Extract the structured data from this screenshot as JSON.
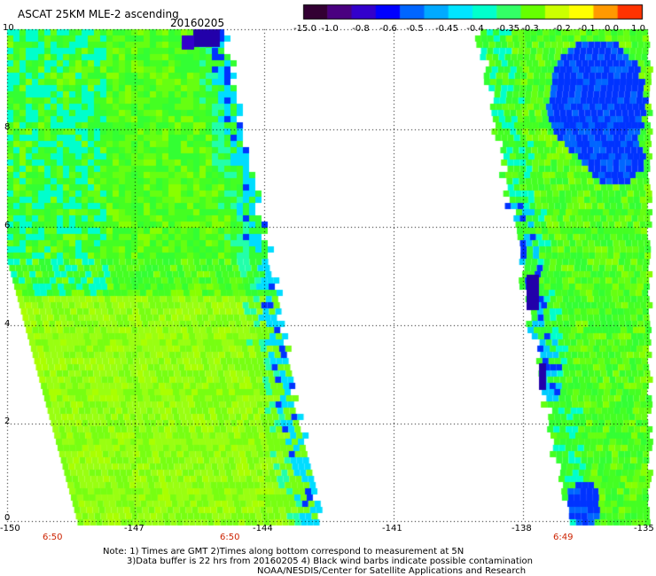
{
  "header": {
    "title": "ASCAT 25KM MLE-2 ascending",
    "date": "20160205"
  },
  "colorbar": {
    "labels": [
      "-15.0",
      "-1.0",
      "-0.8",
      "-0.6",
      "-0.5",
      "-0.45",
      "-0.4",
      "-0.35",
      "-0.3",
      "-0.2",
      "-0.1",
      "0.0",
      "1.0"
    ],
    "colors": [
      "#330033",
      "#4a0080",
      "#3300cc",
      "#0000ff",
      "#0066ff",
      "#00aaff",
      "#00e5ff",
      "#00ffcc",
      "#33ff66",
      "#66ff00",
      "#ccff00",
      "#ffff00",
      "#ff9900",
      "#ff3300"
    ]
  },
  "axes": {
    "x_ticks": [
      "-150",
      "-147",
      "-144",
      "-141",
      "-138",
      "-135"
    ],
    "y_ticks": [
      "0",
      "2",
      "4",
      "6",
      "8",
      "10"
    ]
  },
  "time_labels": [
    "6:50",
    "6:50",
    "6:49"
  ],
  "notes": [
    "Note: 1) Times are GMT 2)Times along bottom correspond to measurement at 5N",
    "3)Data buffer is 22 hrs from 20160205 4) Black wind barbs indicate possible contamination",
    "NOAA/NESDIS/Center for Satellite Applications and Research"
  ],
  "palette": {
    "green": "#44ff22",
    "lime": "#99ff11",
    "cyan": "#00ffee",
    "blue": "#0033ff",
    "dark_blue": "#2200aa"
  }
}
